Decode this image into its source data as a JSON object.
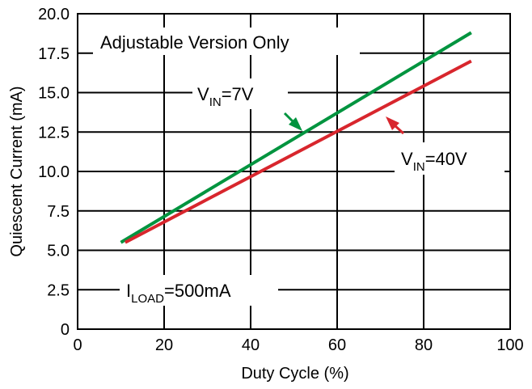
{
  "chart_data": {
    "type": "line",
    "xlabel": "Duty Cycle (%)",
    "ylabel": "Quiescent Current (mA)",
    "xlim": [
      0,
      100
    ],
    "ylim": [
      0,
      20
    ],
    "x_ticks": [
      "0",
      "20",
      "40",
      "60",
      "80",
      "100"
    ],
    "y_ticks": [
      "0",
      "2.5",
      "5.0",
      "7.5",
      "10.0",
      "12.5",
      "15.0",
      "17.5",
      "20.0"
    ],
    "grid": true,
    "series": [
      {
        "name": "VIN=7V",
        "color": "#00943f",
        "x": [
          10,
          91
        ],
        "y": [
          5.5,
          18.8
        ]
      },
      {
        "name": "VIN=40V",
        "color": "#d8262d",
        "x": [
          11,
          91
        ],
        "y": [
          5.5,
          17.0
        ]
      }
    ],
    "annotations": {
      "version_note": "Adjustable Version Only",
      "load_note": {
        "prefix": "I",
        "sub": "LOAD",
        "suffix": "=500mA"
      },
      "vin7": {
        "prefix": "V",
        "sub": "IN",
        "suffix": "=7V"
      },
      "vin40": {
        "prefix": "V",
        "sub": "IN",
        "suffix": "=40V"
      }
    }
  }
}
